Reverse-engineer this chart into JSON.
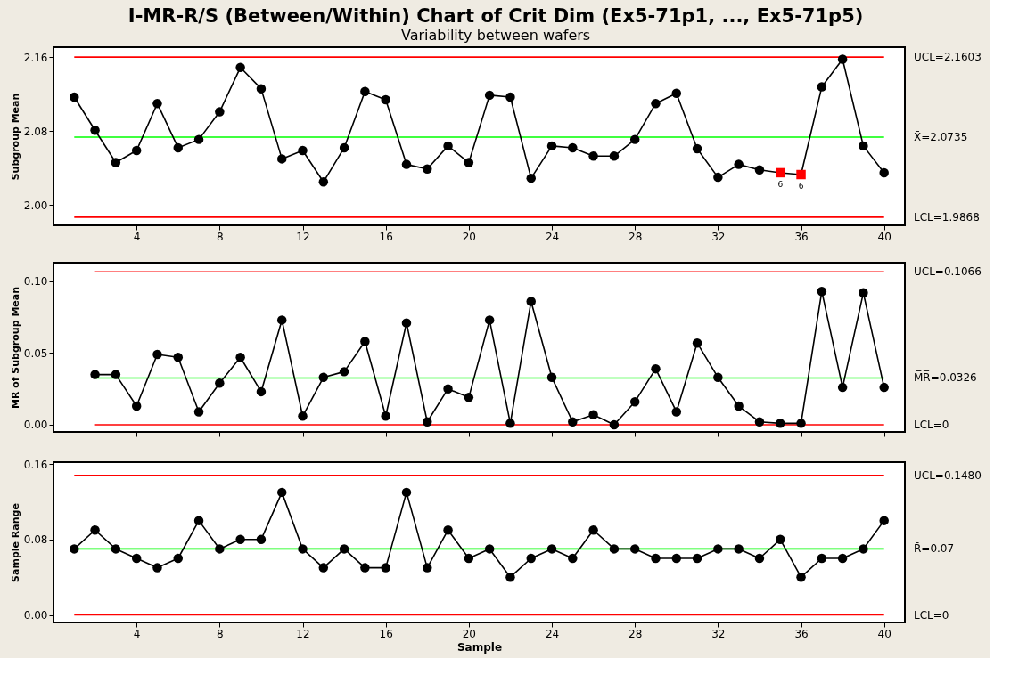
{
  "chart_data": [
    {
      "type": "line",
      "title": "I-MR-R/S (Between/Within) Chart of Crit Dim (Ex5-71p1, ..., Ex5-71p5)",
      "subtitle": "Variability between wafers",
      "ylabel": "Subgroup Mean",
      "grid": false,
      "x": [
        1,
        2,
        3,
        4,
        5,
        6,
        7,
        8,
        9,
        10,
        11,
        12,
        13,
        14,
        15,
        16,
        17,
        18,
        19,
        20,
        21,
        22,
        23,
        24,
        25,
        26,
        27,
        28,
        29,
        30,
        31,
        32,
        33,
        34,
        35,
        36,
        37,
        38,
        39,
        40
      ],
      "xlim": [
        0,
        41
      ],
      "xticks": [
        4,
        8,
        12,
        16,
        20,
        24,
        28,
        32,
        36,
        40
      ],
      "ylim": [
        1.978,
        2.171
      ],
      "yticks": [
        {
          "value": 2.0,
          "label": "2.00"
        },
        2.08,
        2.16
      ],
      "series": [
        {
          "type": "line",
          "marker": "none",
          "color": "#000000",
          "values": [
            2.117,
            2.081,
            2.046,
            2.059,
            2.11,
            2.062,
            2.071,
            2.101,
            2.149,
            2.126,
            2.05,
            2.059,
            2.025,
            2.062,
            2.123,
            2.114,
            2.044,
            2.039,
            2.064,
            2.046,
            2.119,
            2.117,
            2.029,
            2.064,
            2.062,
            2.053,
            2.053,
            2.071,
            2.11,
            2.121,
            2.061,
            2.03,
            2.044,
            2.038,
            2.035,
            2.033,
            2.128,
            2.158,
            2.064,
            2.035
          ]
        },
        {
          "type": "scatter",
          "marker": "circle",
          "color": "#000000",
          "x": [
            1,
            2,
            3,
            4,
            5,
            6,
            7,
            8,
            9,
            10,
            11,
            12,
            13,
            14,
            15,
            16,
            17,
            18,
            19,
            20,
            21,
            22,
            23,
            24,
            25,
            26,
            27,
            28,
            29,
            30,
            31,
            32,
            33,
            34,
            37,
            38,
            39,
            40
          ],
          "values": [
            2.117,
            2.081,
            2.046,
            2.059,
            2.11,
            2.062,
            2.071,
            2.101,
            2.149,
            2.126,
            2.05,
            2.059,
            2.025,
            2.062,
            2.123,
            2.114,
            2.044,
            2.039,
            2.064,
            2.046,
            2.119,
            2.117,
            2.029,
            2.064,
            2.062,
            2.053,
            2.053,
            2.071,
            2.11,
            2.121,
            2.061,
            2.03,
            2.044,
            2.038,
            2.128,
            2.158,
            2.064,
            2.035
          ]
        },
        {
          "type": "scatter",
          "marker": "square",
          "color": "#ff0000",
          "x": [
            35,
            36
          ],
          "values": [
            2.035,
            2.033
          ]
        }
      ],
      "ref_lines": [
        {
          "axis": "y",
          "value": 2.1603,
          "label": "UCL=2.1603",
          "color": "#ff0000"
        },
        {
          "axis": "y",
          "value": 2.0735,
          "label": "X̄=2.0735",
          "color": "#00ff00"
        },
        {
          "axis": "y",
          "value": 1.9868,
          "label": "LCL=1.9868",
          "color": "#ff0000"
        }
      ],
      "annotations": [
        {
          "text": "6",
          "x": 35,
          "y": 2.035
        },
        {
          "text": "6",
          "x": 36,
          "y": 2.033
        }
      ]
    },
    {
      "type": "line",
      "ylabel": "MR of Subgroup Mean",
      "grid": false,
      "marker": "circle",
      "tick_labels": "y",
      "x": [
        2,
        3,
        4,
        5,
        6,
        7,
        8,
        9,
        10,
        11,
        12,
        13,
        14,
        15,
        16,
        17,
        18,
        19,
        20,
        21,
        22,
        23,
        24,
        25,
        26,
        27,
        28,
        29,
        30,
        31,
        32,
        33,
        34,
        35,
        36,
        37,
        38,
        39,
        40
      ],
      "xlim": [
        0,
        41
      ],
      "xticks": [
        4,
        8,
        12,
        16,
        20,
        24,
        28,
        32,
        36,
        40
      ],
      "ylim": [
        -0.005,
        0.113
      ],
      "yticks": [
        {
          "value": 0,
          "label": "0.00"
        },
        0.05,
        {
          "value": 0.1,
          "label": "0.10"
        }
      ],
      "series": [
        {
          "color": "#000000",
          "values": [
            0.035,
            0.035,
            0.013,
            0.049,
            0.047,
            0.009,
            0.029,
            0.047,
            0.023,
            0.073,
            0.006,
            0.033,
            0.037,
            0.058,
            0.006,
            0.071,
            0.002,
            0.025,
            0.019,
            0.073,
            0.001,
            0.086,
            0.033,
            0.002,
            0.007,
            0.0,
            0.016,
            0.039,
            0.009,
            0.057,
            0.033,
            0.013,
            0.002,
            0.001,
            0.001,
            0.093,
            0.026,
            0.092,
            0.026
          ]
        }
      ],
      "ref_lines": [
        {
          "axis": "y",
          "value": 0.1066,
          "label": "UCL=0.1066",
          "color": "#ff0000"
        },
        {
          "axis": "y",
          "value": 0.0326,
          "label": "M̅R̅=0.0326",
          "color": "#00ff00"
        },
        {
          "axis": "y",
          "value": 0,
          "label": "LCL=0",
          "color": "#ff0000"
        }
      ]
    },
    {
      "type": "line",
      "xlabel": "Sample",
      "ylabel": "Sample Range",
      "grid": false,
      "marker": "circle",
      "x": [
        1,
        2,
        3,
        4,
        5,
        6,
        7,
        8,
        9,
        10,
        11,
        12,
        13,
        14,
        15,
        16,
        17,
        18,
        19,
        20,
        21,
        22,
        23,
        24,
        25,
        26,
        27,
        28,
        29,
        30,
        31,
        32,
        33,
        34,
        35,
        36,
        37,
        38,
        39,
        40
      ],
      "xlim": [
        0,
        41
      ],
      "xticks": [
        4,
        8,
        12,
        16,
        20,
        24,
        28,
        32,
        36,
        40
      ],
      "ylim": [
        -0.008,
        0.162
      ],
      "yticks": [
        {
          "value": 0,
          "label": "0.00"
        },
        0.08,
        0.16
      ],
      "series": [
        {
          "color": "#000000",
          "values": [
            0.07,
            0.09,
            0.07,
            0.06,
            0.05,
            0.06,
            0.1,
            0.07,
            0.08,
            0.08,
            0.13,
            0.07,
            0.05,
            0.07,
            0.05,
            0.05,
            0.13,
            0.05,
            0.09,
            0.06,
            0.07,
            0.04,
            0.06,
            0.07,
            0.06,
            0.09,
            0.07,
            0.07,
            0.06,
            0.06,
            0.06,
            0.07,
            0.07,
            0.06,
            0.08,
            0.04,
            0.06,
            0.06,
            0.07,
            0.1
          ]
        }
      ],
      "ref_lines": [
        {
          "axis": "y",
          "value": 0.148,
          "label": "UCL=0.1480",
          "color": "#ff0000"
        },
        {
          "axis": "y",
          "value": 0.07,
          "label": "R̄=0.07",
          "color": "#00ff00"
        },
        {
          "axis": "y",
          "value": 0,
          "label": "LCL=0",
          "color": "#ff0000"
        }
      ]
    }
  ]
}
